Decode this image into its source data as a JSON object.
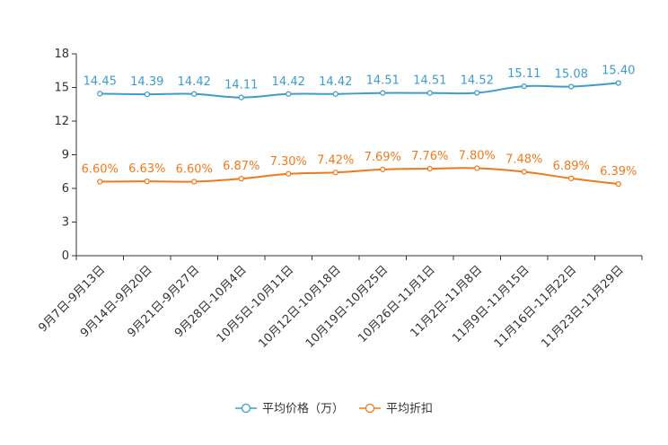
{
  "chart_data": {
    "type": "line",
    "categories": [
      "9月7日-9月13日",
      "9月14日-9月20日",
      "9月21日-9月27日",
      "9月28日-10月4日",
      "10月5日-10月11日",
      "10月12日-10月18日",
      "10月19日-10月25日",
      "10月26日-11月1日",
      "11月2日-11月8日",
      "11月9日-11月15日",
      "11月16日-11月22日",
      "11月23日-11月29日"
    ],
    "ylim": [
      0,
      18
    ],
    "yticks": [
      "0",
      "3",
      "6",
      "9",
      "12",
      "15",
      "18"
    ],
    "series": [
      {
        "name": "平均价格（万）",
        "color": "#3d9ccb",
        "values": [
          14.45,
          14.39,
          14.42,
          14.11,
          14.42,
          14.42,
          14.51,
          14.51,
          14.52,
          15.11,
          15.08,
          15.4
        ],
        "labels": [
          "14.45",
          "14.39",
          "14.42",
          "14.11",
          "14.42",
          "14.42",
          "14.51",
          "14.51",
          "14.52",
          "15.11",
          "15.08",
          "15.40"
        ]
      },
      {
        "name": "平均折扣",
        "color": "#f07a1a",
        "values": [
          6.6,
          6.63,
          6.6,
          6.87,
          7.3,
          7.42,
          7.69,
          7.76,
          7.8,
          7.48,
          6.89,
          6.39
        ],
        "labels": [
          "6.60%",
          "6.63%",
          "6.60%",
          "6.87%",
          "7.30%",
          "7.42%",
          "7.69%",
          "7.76%",
          "7.80%",
          "7.48%",
          "6.89%",
          "6.39%"
        ]
      }
    ],
    "legend_position": "bottom-center",
    "grid": false
  }
}
